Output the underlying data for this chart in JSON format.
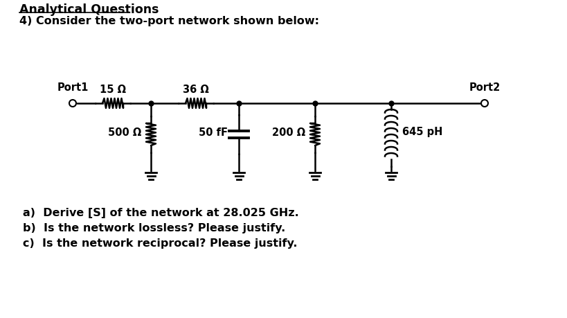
{
  "title": "Analytical Questions",
  "subtitle": "4) Consider the two-port network shown below:",
  "background_color": "#ffffff",
  "text_color": "#000000",
  "questions": [
    "a)  Derive [S] of the network at 28.025 GHz.",
    "b)  Is the network lossless? Please justify.",
    "c)  Is the network reciprocal? Please justify."
  ],
  "circuit": {
    "port1_label": "Port1",
    "port2_label": "Port2",
    "r1_label": "15 Ω",
    "r2_label": "36 Ω",
    "r3_label": "500 Ω",
    "c1_label": "50 fF",
    "r4_label": "200 Ω",
    "l1_label": "645 pH"
  }
}
